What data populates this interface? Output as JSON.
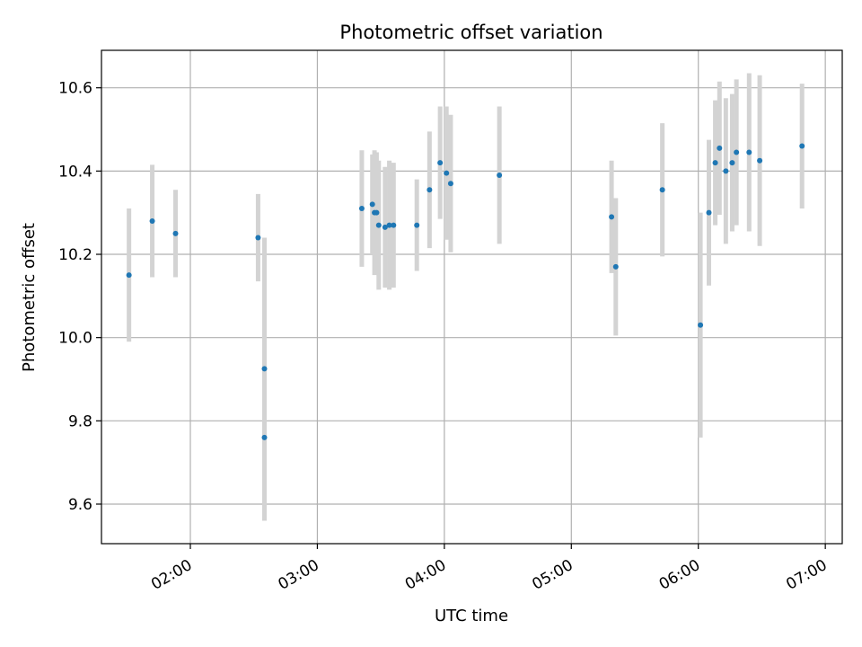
{
  "chart_data": {
    "type": "scatter",
    "title": "Photometric offset variation",
    "xlabel": "UTC time",
    "ylabel": "Photometric offset",
    "xlim": [
      "01:18",
      "07:08"
    ],
    "ylim": [
      9.505,
      10.69
    ],
    "x_ticks": [
      "02:00",
      "03:00",
      "04:00",
      "05:00",
      "06:00",
      "07:00"
    ],
    "y_ticks": [
      9.6,
      9.8,
      10.0,
      10.2,
      10.4,
      10.6
    ],
    "grid": true,
    "x_tick_rotation_deg": 30,
    "colors": {
      "point": "#1f77b4",
      "errorbar": "#d3d3d3",
      "grid": "#b0b0b0",
      "axis": "#000000"
    },
    "series": [
      {
        "points": [
          {
            "x": "01:31",
            "y": 10.15,
            "err": 0.16
          },
          {
            "x": "01:42",
            "y": 10.28,
            "err": 0.135
          },
          {
            "x": "01:53",
            "y": 10.25,
            "err": 0.105
          },
          {
            "x": "02:32",
            "y": 10.24,
            "err": 0.105
          },
          {
            "x": "02:35",
            "y": 9.76,
            "err": 0.2
          },
          {
            "x": "02:35",
            "y": 9.925,
            "err": 0.315
          },
          {
            "x": "03:21",
            "y": 10.31,
            "err": 0.14
          },
          {
            "x": "03:26",
            "y": 10.32,
            "err": 0.12
          },
          {
            "x": "03:27",
            "y": 10.3,
            "err": 0.15
          },
          {
            "x": "03:28",
            "y": 10.3,
            "err": 0.145
          },
          {
            "x": "03:29",
            "y": 10.27,
            "err": 0.155
          },
          {
            "x": "03:32",
            "y": 10.265,
            "err": 0.145
          },
          {
            "x": "03:34",
            "y": 10.27,
            "err": 0.155
          },
          {
            "x": "03:36",
            "y": 10.27,
            "err": 0.15
          },
          {
            "x": "03:47",
            "y": 10.27,
            "err": 0.11
          },
          {
            "x": "03:53",
            "y": 10.355,
            "err": 0.14
          },
          {
            "x": "03:58",
            "y": 10.42,
            "err": 0.135
          },
          {
            "x": "04:01",
            "y": 10.395,
            "err": 0.16
          },
          {
            "x": "04:03",
            "y": 10.37,
            "err": 0.165
          },
          {
            "x": "04:26",
            "y": 10.39,
            "err": 0.165
          },
          {
            "x": "05:19",
            "y": 10.29,
            "err": 0.135
          },
          {
            "x": "05:21",
            "y": 10.17,
            "err": 0.165
          },
          {
            "x": "05:43",
            "y": 10.355,
            "err": 0.16
          },
          {
            "x": "06:01",
            "y": 10.03,
            "err": 0.27
          },
          {
            "x": "06:05",
            "y": 10.3,
            "err": 0.175
          },
          {
            "x": "06:08",
            "y": 10.42,
            "err": 0.15
          },
          {
            "x": "06:10",
            "y": 10.455,
            "err": 0.16
          },
          {
            "x": "06:13",
            "y": 10.4,
            "err": 0.175
          },
          {
            "x": "06:16",
            "y": 10.42,
            "err": 0.165
          },
          {
            "x": "06:18",
            "y": 10.445,
            "err": 0.175
          },
          {
            "x": "06:24",
            "y": 10.445,
            "err": 0.19
          },
          {
            "x": "06:29",
            "y": 10.425,
            "err": 0.205
          },
          {
            "x": "06:49",
            "y": 10.46,
            "err": 0.15
          }
        ]
      }
    ]
  }
}
